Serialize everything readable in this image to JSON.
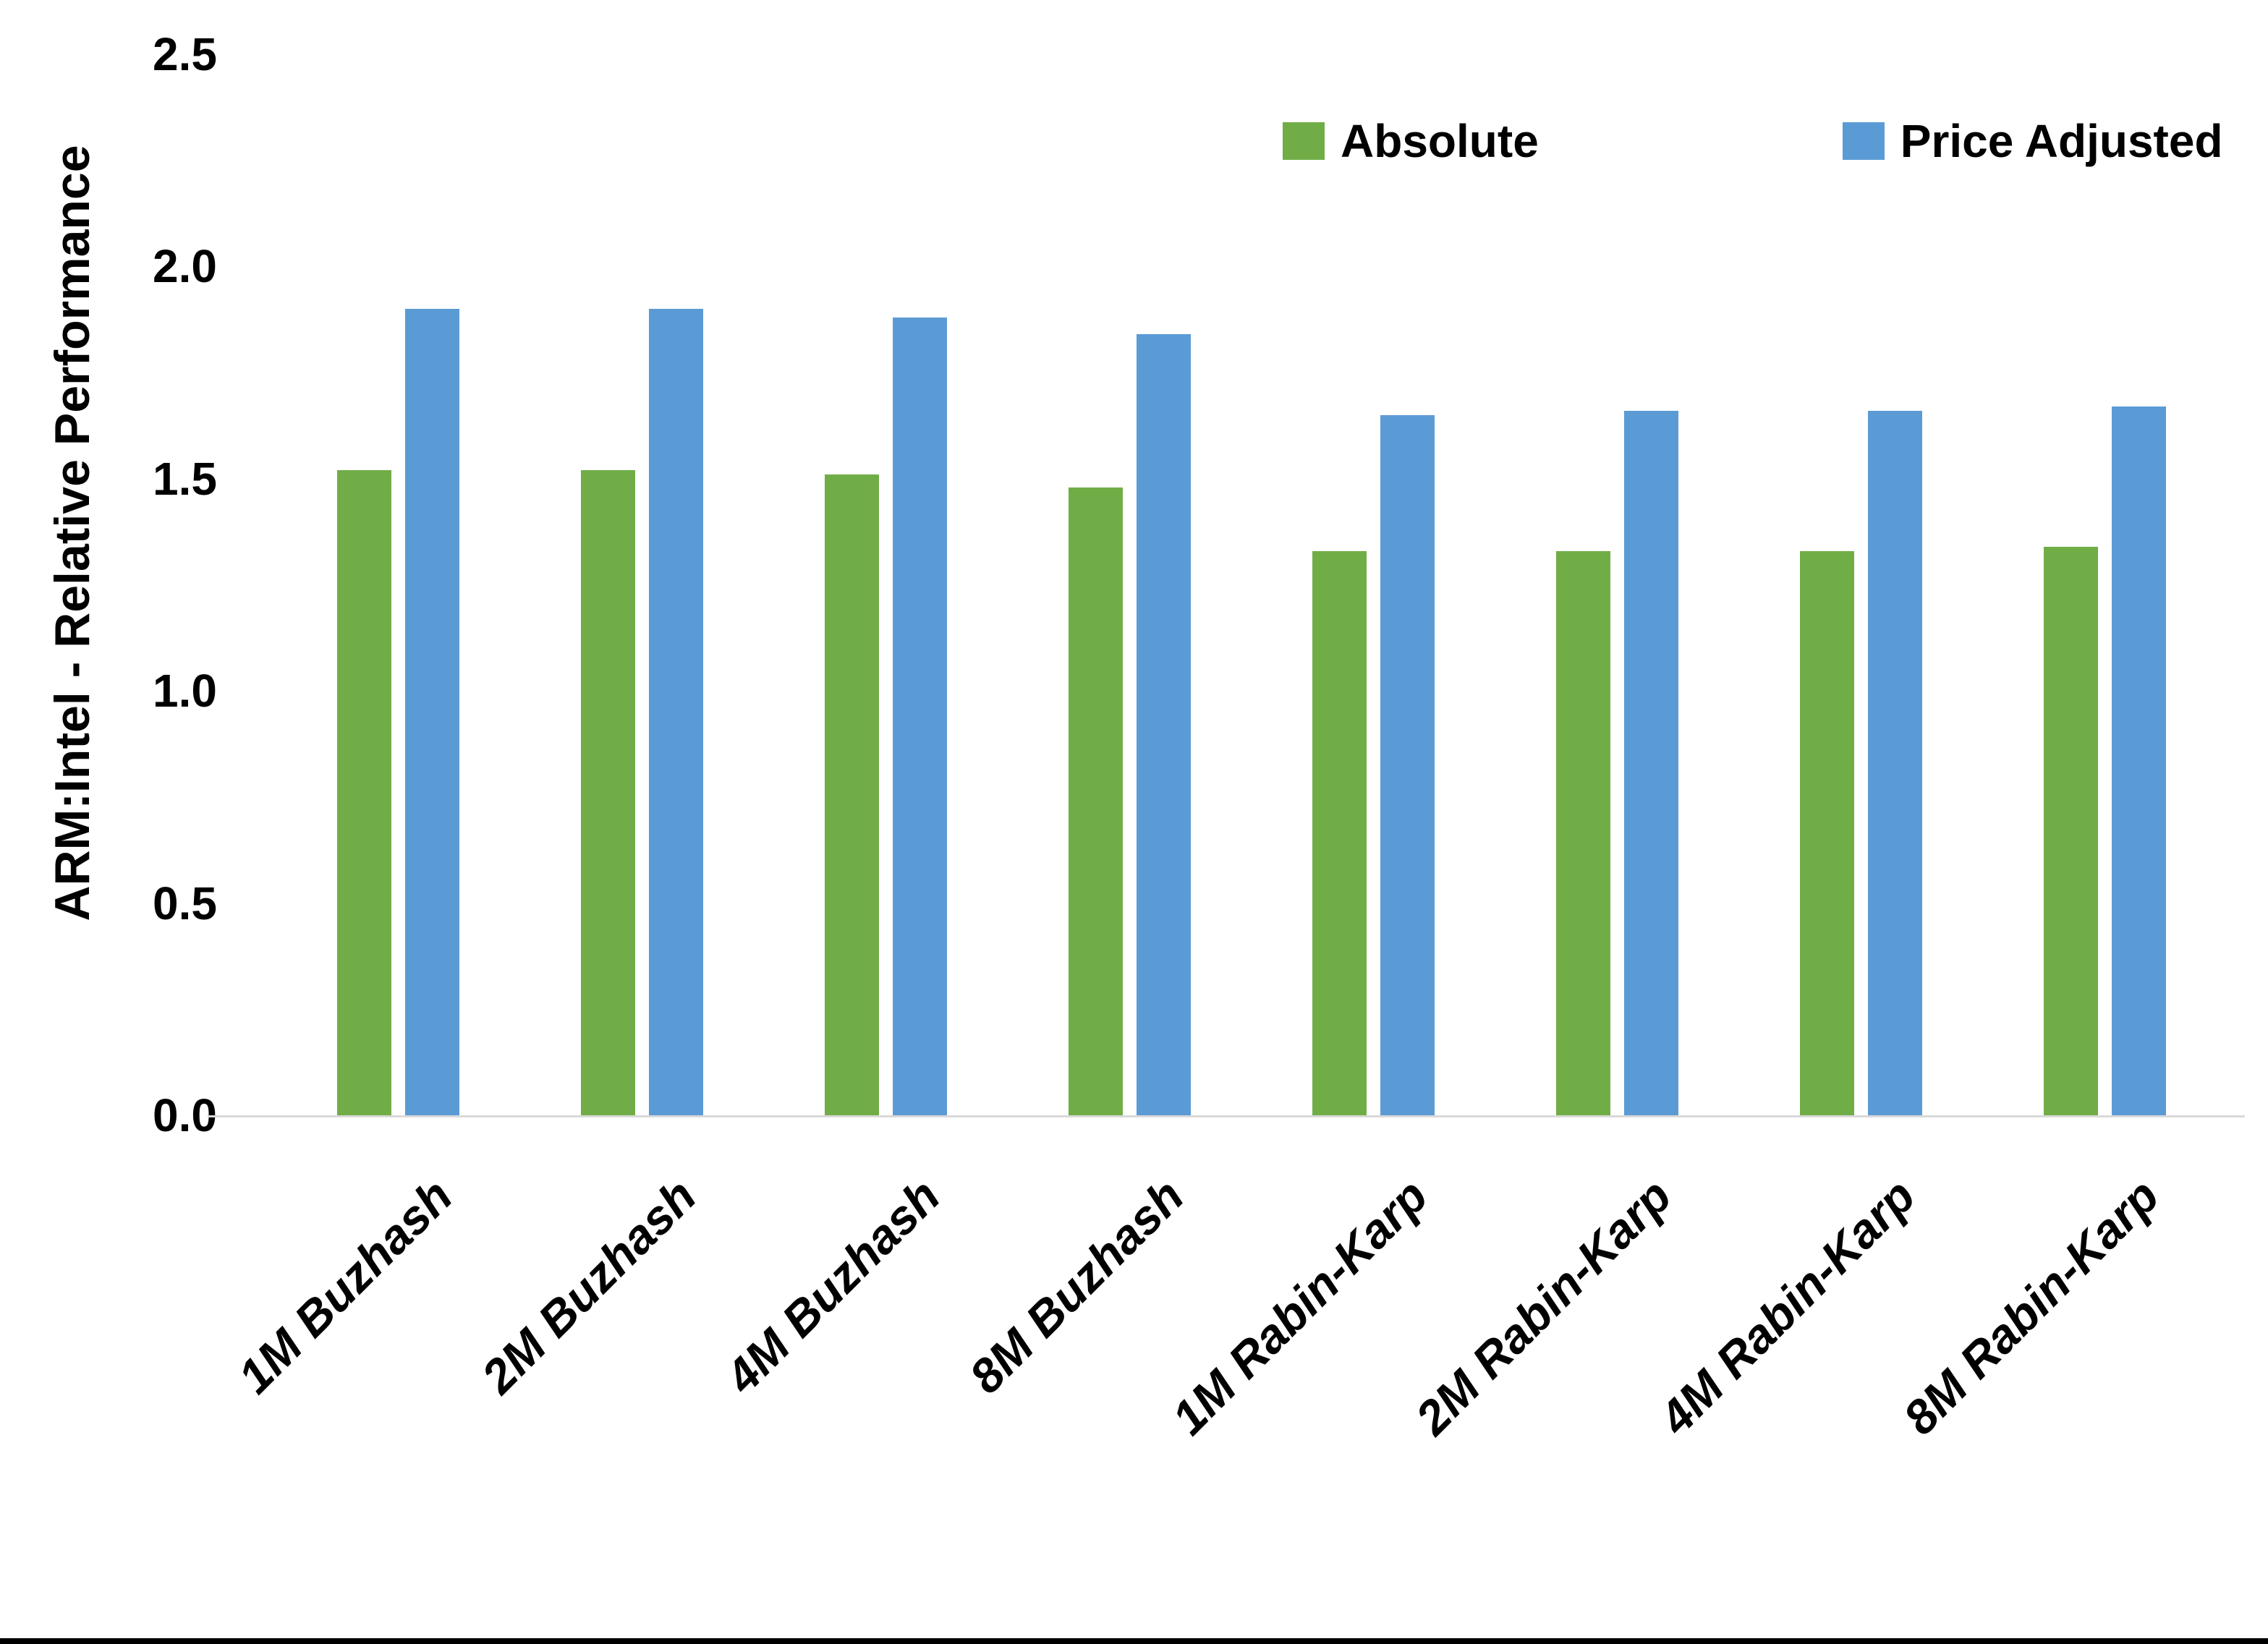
{
  "chart_data": {
    "type": "bar",
    "title": "",
    "ylabel": "ARM:Intel - Relative Performance",
    "xlabel": "",
    "ylim": [
      0,
      2.5
    ],
    "yticks": [
      "0.0",
      "0.5",
      "1.0",
      "1.5",
      "2.0",
      "2.5"
    ],
    "grid": false,
    "legend_position": "top-right",
    "background_color": "#FFFFFF",
    "axis_line_color": "#D9D9D9",
    "categories": [
      "1M Buzhash",
      "2M Buzhash",
      "4M Buzhash",
      "8M Buzhash",
      "1M Rabin-Karp",
      "2M Rabin-Karp",
      "4M Rabin-Karp",
      "8M Rabin-Karp"
    ],
    "series": [
      {
        "name": "Absolute",
        "color": "#70AD47",
        "values": [
          1.52,
          1.52,
          1.51,
          1.48,
          1.33,
          1.33,
          1.33,
          1.34
        ]
      },
      {
        "name": "Price Adjusted",
        "color": "#5B9BD5",
        "values": [
          1.9,
          1.9,
          1.88,
          1.84,
          1.65,
          1.66,
          1.66,
          1.67
        ]
      }
    ]
  }
}
